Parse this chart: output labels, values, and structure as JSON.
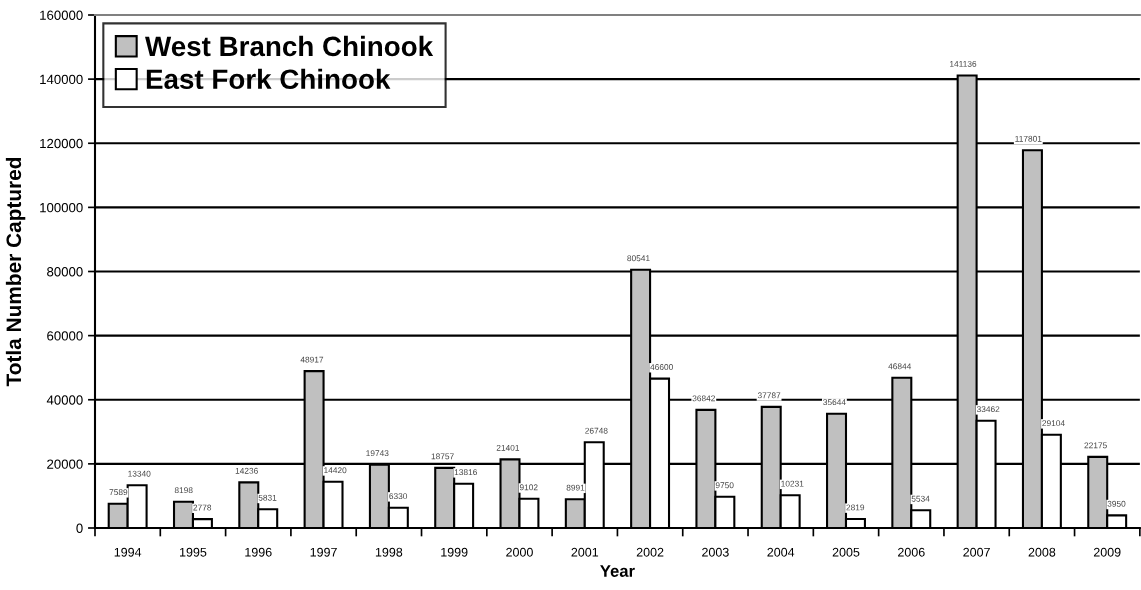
{
  "chart_data": {
    "type": "bar",
    "xlabel": "Year",
    "ylabel": "Totla Number Captured",
    "categories": [
      "1994",
      "1995",
      "1996",
      "1997",
      "1998",
      "1999",
      "2000",
      "2001",
      "2002",
      "2003",
      "2004",
      "2005",
      "2006",
      "2007",
      "2008",
      "2009"
    ],
    "series": [
      {
        "name": "West Branch Chinook",
        "color": "#c0c0c0",
        "values": [
          7589,
          8198,
          14236,
          48917,
          19743,
          18757,
          21401,
          8991,
          80541,
          36842,
          37787,
          35644,
          46844,
          141136,
          117801,
          22175
        ]
      },
      {
        "name": "East Fork Chinook",
        "color": "#ffffff",
        "values": [
          13340,
          2778,
          5831,
          14420,
          6330,
          13816,
          9102,
          26748,
          46600,
          9750,
          10231,
          2819,
          5534,
          33462,
          29104,
          3950
        ]
      }
    ],
    "ylim": [
      0,
      160000
    ],
    "yticks": [
      0,
      20000,
      40000,
      60000,
      80000,
      100000,
      120000,
      140000,
      160000
    ],
    "grid": "y",
    "legend": "top left",
    "data_labels": true
  }
}
